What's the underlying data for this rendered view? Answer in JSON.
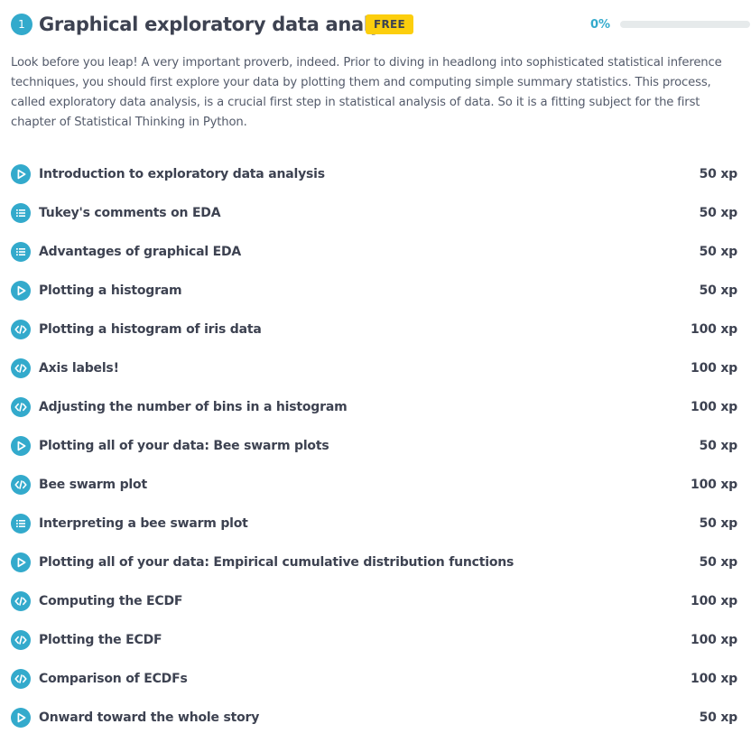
{
  "chapter": {
    "number": "1",
    "title": "Graphical exploratory data analysis",
    "badge": "FREE",
    "progress_label": "0%",
    "progress_fraction": 0,
    "description": "Look before you leap! A very important proverb, indeed. Prior to diving in headlong into sophisticated statistical inference techniques, you should first explore your data by plotting them and computing simple summary statistics. This process, called exploratory data analysis, is a crucial first step in statistical analysis of data. So it is a fitting subject for the first chapter of Statistical Thinking in Python."
  },
  "colors": {
    "accent": "#33aacc",
    "badge": "#fcce0d",
    "text": "#3d4251",
    "progress_track": "#e6eaeb"
  },
  "exercises": [
    {
      "title": "Introduction to exploratory data analysis",
      "xp": "50 xp",
      "icon": "video-play-icon"
    },
    {
      "title": "Tukey's comments on EDA",
      "xp": "50 xp",
      "icon": "multiple-choice-list-icon"
    },
    {
      "title": "Advantages of graphical EDA",
      "xp": "50 xp",
      "icon": "multiple-choice-list-icon"
    },
    {
      "title": "Plotting a histogram",
      "xp": "50 xp",
      "icon": "video-play-icon"
    },
    {
      "title": "Plotting a histogram of iris data",
      "xp": "100 xp",
      "icon": "code-exercise-icon"
    },
    {
      "title": "Axis labels!",
      "xp": "100 xp",
      "icon": "code-exercise-icon"
    },
    {
      "title": "Adjusting the number of bins in a histogram",
      "xp": "100 xp",
      "icon": "code-exercise-icon"
    },
    {
      "title": "Plotting all of your data: Bee swarm plots",
      "xp": "50 xp",
      "icon": "video-play-icon"
    },
    {
      "title": "Bee swarm plot",
      "xp": "100 xp",
      "icon": "code-exercise-icon"
    },
    {
      "title": "Interpreting a bee swarm plot",
      "xp": "50 xp",
      "icon": "multiple-choice-list-icon"
    },
    {
      "title": "Plotting all of your data: Empirical cumulative distribution functions",
      "xp": "50 xp",
      "icon": "video-play-icon"
    },
    {
      "title": "Computing the ECDF",
      "xp": "100 xp",
      "icon": "code-exercise-icon"
    },
    {
      "title": "Plotting the ECDF",
      "xp": "100 xp",
      "icon": "code-exercise-icon"
    },
    {
      "title": "Comparison of ECDFs",
      "xp": "100 xp",
      "icon": "code-exercise-icon"
    },
    {
      "title": "Onward toward the whole story",
      "xp": "50 xp",
      "icon": "video-play-icon"
    }
  ]
}
